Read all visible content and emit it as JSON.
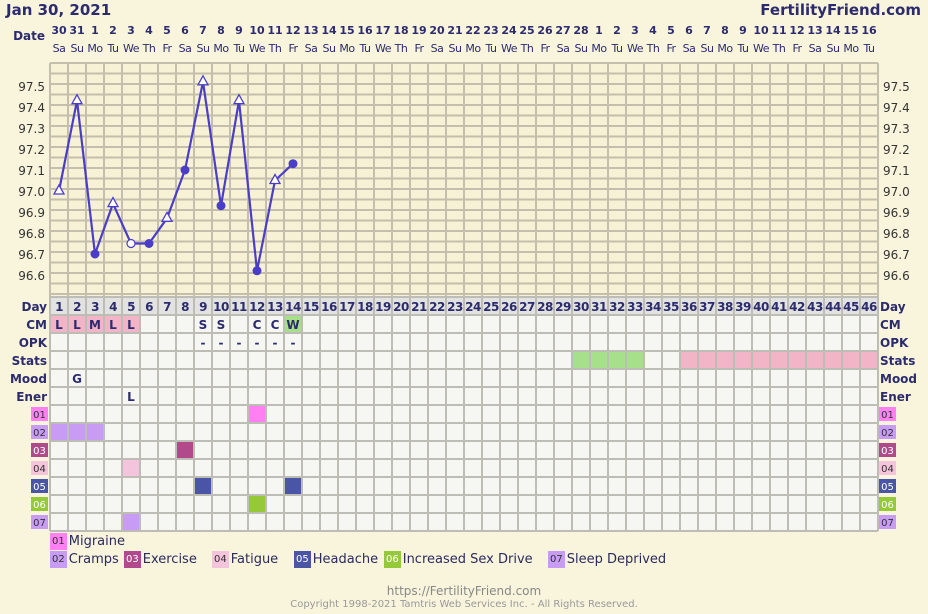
{
  "header": {
    "title": "Jan 30, 2021",
    "brand": "FertilityFriend.com"
  },
  "row_labels": {
    "date": "Date",
    "day": "Day",
    "cm": "CM",
    "opk": "OPK",
    "stats": "Stats",
    "mood": "Mood",
    "ener": "Ener"
  },
  "dates": [
    "30",
    "31",
    "1",
    "2",
    "3",
    "4",
    "5",
    "6",
    "7",
    "8",
    "9",
    "10",
    "11",
    "12",
    "13",
    "14",
    "15",
    "16",
    "17",
    "18",
    "19",
    "20",
    "21",
    "22",
    "23",
    "24",
    "25",
    "26",
    "27",
    "28",
    "1",
    "2",
    "3",
    "4",
    "5",
    "6",
    "7",
    "8",
    "9",
    "10",
    "11",
    "12",
    "13",
    "14",
    "15",
    "16"
  ],
  "weekdays": [
    "Sa",
    "Su",
    "Mo",
    "Tu",
    "We",
    "Th",
    "Fr"
  ],
  "chart_data": {
    "type": "line",
    "ylim": [
      96.5,
      97.6
    ],
    "yticks": [
      "97.5",
      "97.4",
      "97.3",
      "97.2",
      "97.1",
      "97.0",
      "96.9",
      "96.8",
      "96.7",
      "96.6"
    ],
    "days": [
      1,
      2,
      3,
      4,
      5,
      6,
      7,
      8,
      9,
      10,
      11,
      12,
      13,
      14
    ],
    "temps": [
      97.0,
      97.43,
      96.7,
      96.94,
      96.75,
      96.75,
      96.87,
      97.1,
      97.52,
      96.93,
      97.43,
      96.62,
      97.05,
      97.13
    ],
    "markers": [
      "tri",
      "tri",
      "dot",
      "tri",
      "open",
      "dot",
      "tri",
      "dot",
      "tri",
      "dot",
      "tri",
      "dot",
      "tri",
      "dot"
    ],
    "line_color": "#4a3ec6"
  },
  "cm": {
    "1": "L",
    "2": "L",
    "3": "M",
    "4": "L",
    "5": "L",
    "9": "S",
    "10": "S",
    "12": "C",
    "13": "C",
    "14": "W"
  },
  "cm_colors": {
    "L": "#f2b5c8",
    "M": "#f2b5c8",
    "W": "#a6e08a"
  },
  "opk": {
    "9": "-",
    "10": "-",
    "11": "-",
    "12": "-",
    "13": "-",
    "14": "-"
  },
  "stats": {
    "green": [
      30,
      31,
      32,
      33
    ],
    "pink": [
      36,
      37,
      38,
      39,
      40,
      41,
      42,
      43,
      44,
      45,
      46
    ],
    "green_color": "#a6e08a",
    "pink_color": "#f2b5c8"
  },
  "mood": {
    "2": "G"
  },
  "ener": {
    "5": "L"
  },
  "symptoms": [
    {
      "code": "01",
      "name": "Migraine",
      "color": "#ff80f0",
      "days": [
        12
      ]
    },
    {
      "code": "02",
      "name": "Cramps",
      "color": "#c89bf5",
      "days": [
        1,
        2,
        3
      ]
    },
    {
      "code": "03",
      "name": "Exercise",
      "color": "#b04a8a",
      "days": [
        8
      ]
    },
    {
      "code": "04",
      "name": "Fatigue",
      "color": "#f4c3dc",
      "days": [
        5
      ]
    },
    {
      "code": "05",
      "name": "Headache",
      "color": "#4a55a6",
      "days": [
        9,
        14
      ]
    },
    {
      "code": "06",
      "name": "Increased Sex Drive",
      "color": "#96c93a",
      "days": [
        12
      ]
    },
    {
      "code": "07",
      "name": "Sleep Deprived",
      "color": "#c89bf5",
      "days": [
        5
      ]
    }
  ],
  "footer": {
    "url": "https://FertilityFriend.com",
    "copyright": "Copyright 1998-2021 Tamtris Web Services Inc. - All Rights Reserved."
  }
}
